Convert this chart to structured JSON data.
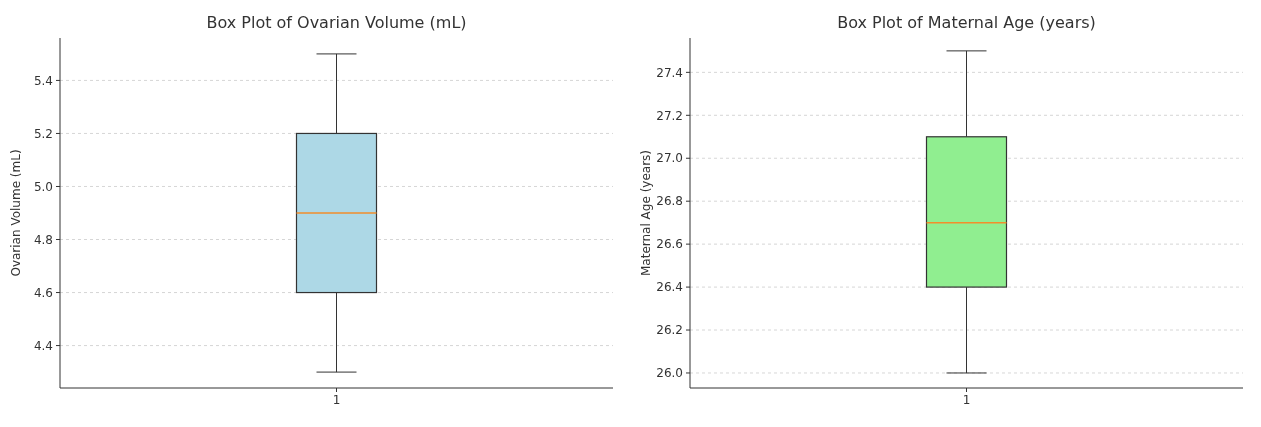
{
  "chart_data": [
    {
      "type": "box",
      "title": "Box Plot of Ovarian Volume (mL)",
      "ylabel": "Ovarian Volume (mL)",
      "categories": [
        "1"
      ],
      "color": "#add8e6",
      "boxes": [
        {
          "low": 4.3,
          "q1": 4.6,
          "median": 4.9,
          "q3": 5.2,
          "high": 5.5
        }
      ],
      "ylim": [
        4.24,
        5.56
      ],
      "yticks": [
        4.4,
        4.6,
        4.8,
        {
          "value": 5,
          "label": "5.0"
        },
        5.2,
        5.4
      ],
      "grid": "y"
    },
    {
      "type": "box",
      "title": "Box Plot of Maternal Age (years)",
      "ylabel": "Maternal Age (years)",
      "categories": [
        "1"
      ],
      "color": "#90ee90",
      "boxes": [
        {
          "low": 26.0,
          "q1": 26.4,
          "median": 26.7,
          "q3": 27.1,
          "high": 27.5
        }
      ],
      "ylim": [
        25.93,
        27.56
      ],
      "yticks": [
        {
          "value": 26,
          "label": "26.0"
        },
        26.2,
        26.4,
        26.6,
        26.8,
        {
          "value": 27,
          "label": "27.0"
        },
        27.2,
        27.4
      ],
      "grid": "y"
    }
  ]
}
